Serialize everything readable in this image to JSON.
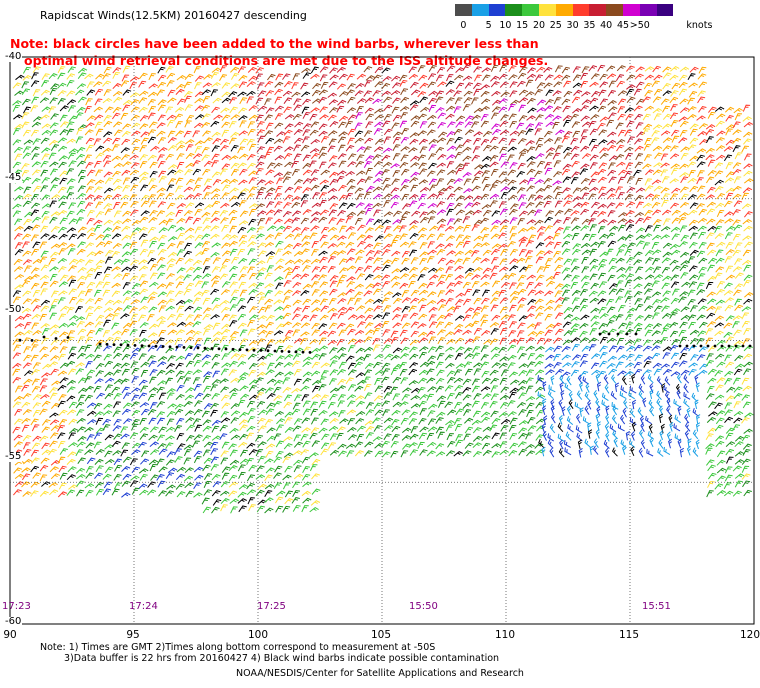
{
  "title": "Rapidscat Winds(12.5KM) 20160427 descending",
  "note": {
    "line1": "Note: black circles have been added to the wind barbs, wherever less than",
    "line2": "optimal wind retrieval conditions are met due to the ISS altitude changes."
  },
  "legend": {
    "unit_label": "knots",
    "bins": [
      {
        "label": "0",
        "color": "#4d4d4d"
      },
      {
        "label": "5",
        "color": "#1aa0e6"
      },
      {
        "label": "10",
        "color": "#1e3fd2"
      },
      {
        "label": "15",
        "color": "#1b8f1b"
      },
      {
        "label": "20",
        "color": "#3cc83c"
      },
      {
        "label": "25",
        "color": "#ffe23c"
      },
      {
        "label": "30",
        "color": "#ffaa00"
      },
      {
        "label": "35",
        "color": "#ff3c2c"
      },
      {
        "label": "40",
        "color": "#c81e32"
      },
      {
        "label": "45",
        "color": "#8b4a1e"
      },
      {
        "label": ">50",
        "color": "#d000d0"
      },
      {
        "label": "",
        "color": "#7a00b4"
      },
      {
        "label": "",
        "color": "#3a0080"
      }
    ]
  },
  "map": {
    "lat_labels": [
      "-40",
      "-45",
      "-50",
      "-55",
      "-60"
    ],
    "lon_labels": [
      "90",
      "95",
      "100",
      "105",
      "110",
      "115",
      "120"
    ],
    "lat_range": [
      -60,
      -40
    ],
    "lon_range": [
      90,
      120
    ],
    "time_labels": [
      "17:23",
      "17:24",
      "17:25",
      "15:50",
      "15:51"
    ],
    "contamination_color": "#000000",
    "flag_marker": "black circle"
  },
  "footnotes": {
    "line1": "Note: 1) Times are GMT 2)Times along bottom correspond to measurement at -50S",
    "line2": "3)Data buffer is 22 hrs from 20160427 4) Black wind barbs indicate possible contamination"
  },
  "credit": "NOAA/NESDIS/Center for Satellite Applications and Research"
}
